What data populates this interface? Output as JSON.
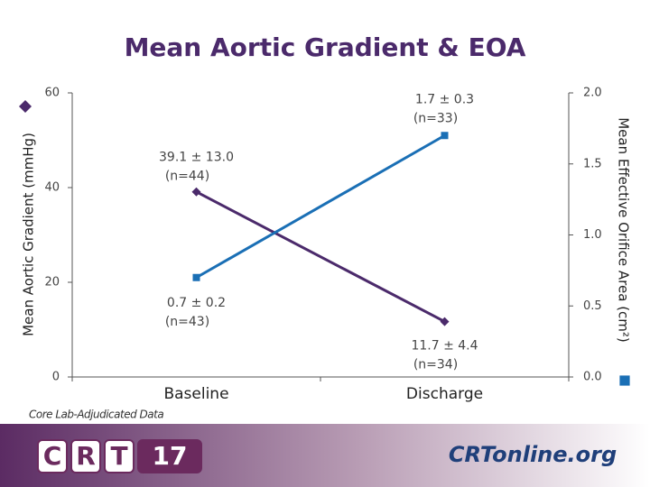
{
  "chart_data": {
    "type": "line",
    "title": "Mean Aortic Gradient & EOA",
    "categories": [
      "Baseline",
      "Discharge"
    ],
    "y_label": "Mean Aortic Gradient (mmHg)",
    "y2_label": "Mean Effective Orifice Area (cm²)",
    "ylim": [
      0,
      60
    ],
    "yticks": [
      0,
      20,
      40,
      60
    ],
    "y2lim": [
      0,
      2
    ],
    "y2ticks": [
      {
        "value": 0,
        "label": "0.0"
      },
      {
        "value": 0.5,
        "label": "0.5"
      },
      {
        "value": 1,
        "label": "1.0"
      },
      {
        "value": 1.5,
        "label": "1.5"
      },
      {
        "value": 2,
        "label": "2.0"
      }
    ],
    "series": [
      {
        "color": "#4b2a6b",
        "marker": "diamond",
        "axis": "y",
        "values": [
          39.1,
          11.7
        ],
        "value_labels": [
          "39.1 ± 13.0",
          "11.7 ± 4.4"
        ],
        "n_labels": [
          "(n=44)",
          "(n=34)"
        ]
      },
      {
        "color": "#1a6fb5",
        "marker": "square",
        "axis": "y2",
        "values": [
          0.7,
          1.7
        ],
        "value_labels": [
          "0.7 ± 0.2",
          "1.7 ± 0.3"
        ],
        "n_labels": [
          "(n=43)",
          "(n=33)"
        ]
      }
    ],
    "note": "Core Lab-Adjudicated Data"
  },
  "footer": {
    "logo_left": [
      "C",
      "R",
      "T",
      "17"
    ],
    "logo_right": "CRTonline.org"
  }
}
